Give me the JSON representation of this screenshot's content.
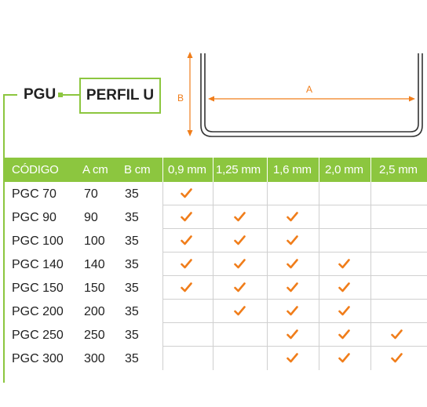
{
  "brand": {
    "green": "#8cc63f",
    "orange": "#f07d1a"
  },
  "header": {
    "series": "PGU",
    "profile": "PERFIL U"
  },
  "diagram": {
    "label_a": "A",
    "label_b": "B"
  },
  "table": {
    "columns": [
      "CÓDIGO",
      "A cm",
      "B cm",
      "0,9 mm",
      "1,25 mm",
      "1,6 mm",
      "2,0 mm",
      "2,5 mm"
    ],
    "rows": [
      {
        "code": "PGC 70",
        "a": "70",
        "b": "35",
        "thickness": [
          true,
          false,
          false,
          false,
          false
        ]
      },
      {
        "code": "PGC 90",
        "a": "90",
        "b": "35",
        "thickness": [
          true,
          true,
          true,
          false,
          false
        ]
      },
      {
        "code": "PGC 100",
        "a": "100",
        "b": "35",
        "thickness": [
          true,
          true,
          true,
          false,
          false
        ]
      },
      {
        "code": "PGC 140",
        "a": "140",
        "b": "35",
        "thickness": [
          true,
          true,
          true,
          true,
          false
        ]
      },
      {
        "code": "PGC 150",
        "a": "150",
        "b": "35",
        "thickness": [
          true,
          true,
          true,
          true,
          false
        ]
      },
      {
        "code": "PGC 200",
        "a": "200",
        "b": "35",
        "thickness": [
          false,
          true,
          true,
          true,
          false
        ]
      },
      {
        "code": "PGC 250",
        "a": "250",
        "b": "35",
        "thickness": [
          false,
          false,
          true,
          true,
          true
        ]
      },
      {
        "code": "PGC 300",
        "a": "300",
        "b": "35",
        "thickness": [
          false,
          false,
          true,
          true,
          true
        ]
      }
    ],
    "check_icon": "checkmark-icon"
  }
}
